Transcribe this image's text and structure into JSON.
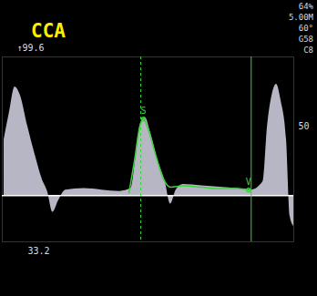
{
  "chart_data": {
    "type": "area",
    "title": "CCA",
    "settings_text": [
      "64%",
      "5.00M",
      "60°",
      "G58",
      "C8"
    ],
    "scale_labels": {
      "top": "↑99.6",
      "bottom": "33.2"
    },
    "xlim": [
      0,
      322
    ],
    "ylim": [
      -33.2,
      99.6
    ],
    "yticks": [
      50
    ],
    "tick_labels": "y",
    "baseline": 0,
    "color": "#d6d6e6",
    "x": [
      2,
      8,
      14,
      20,
      28,
      36,
      44,
      50,
      56,
      62,
      70,
      90,
      110,
      130,
      142,
      148,
      153,
      158,
      164,
      172,
      180,
      186,
      192,
      200,
      220,
      240,
      260,
      275,
      288,
      293,
      298,
      303,
      308,
      314,
      318,
      322
    ],
    "values": [
      40,
      60,
      78,
      72,
      50,
      30,
      12,
      3,
      -12,
      -4,
      4,
      5,
      4,
      3,
      5,
      30,
      52,
      56,
      45,
      25,
      10,
      -6,
      4,
      8,
      7,
      6,
      5,
      4,
      10,
      50,
      72,
      80,
      68,
      40,
      -15,
      -22
    ],
    "envelope": {
      "color": "#3cd23c",
      "x": [
        140,
        146,
        152,
        156,
        162,
        170,
        178,
        186,
        200,
        220,
        240,
        260,
        272
      ],
      "values": [
        2,
        25,
        50,
        55,
        46,
        28,
        12,
        6,
        7,
        6,
        5,
        5,
        4
      ]
    },
    "markers": [
      {
        "label": "S",
        "x": 156,
        "y": 55
      },
      {
        "label": "V",
        "x": 272,
        "y": 4
      }
    ],
    "cursors": [
      {
        "x": 153,
        "line_style": "dashed"
      },
      {
        "x": 275,
        "line_style": "solid"
      }
    ]
  }
}
